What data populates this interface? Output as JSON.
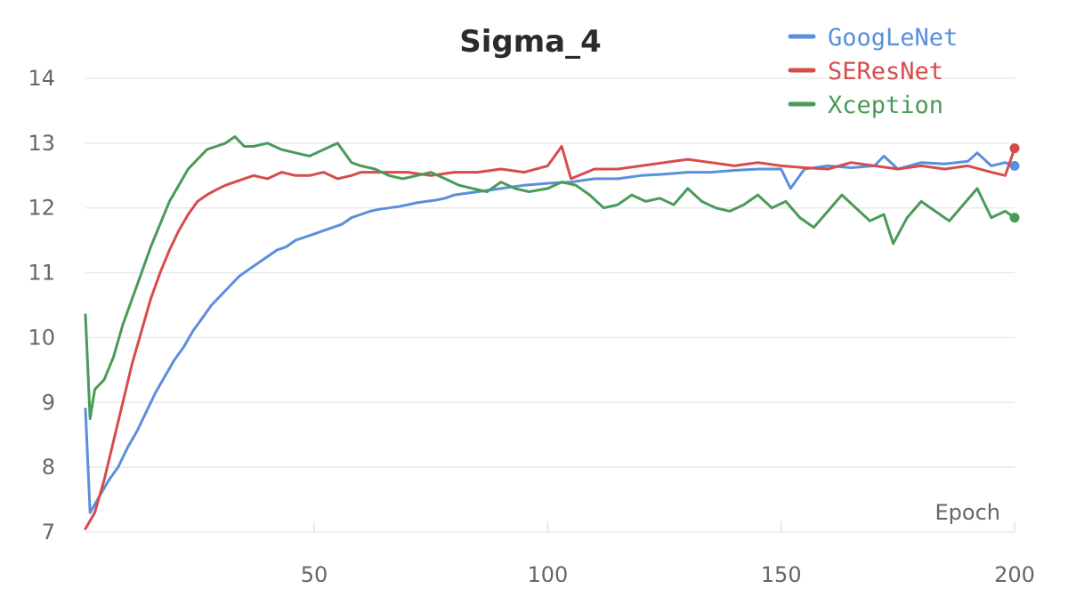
{
  "chart_data": {
    "type": "line",
    "title": "Sigma_4",
    "xlabel": "Epoch",
    "ylabel": "",
    "xlim": [
      1,
      200
    ],
    "ylim": [
      7,
      14
    ],
    "xticks": [
      50,
      100,
      150,
      200
    ],
    "yticks": [
      7,
      8,
      9,
      10,
      11,
      12,
      13,
      14
    ],
    "grid": true,
    "legend_position": "top-right",
    "series": [
      {
        "name": "GoogLeNet",
        "color": "#5a8fdc",
        "points": [
          [
            1,
            8.9
          ],
          [
            2,
            7.3
          ],
          [
            4,
            7.55
          ],
          [
            6,
            7.8
          ],
          [
            8,
            8.0
          ],
          [
            10,
            8.3
          ],
          [
            12,
            8.55
          ],
          [
            14,
            8.85
          ],
          [
            16,
            9.15
          ],
          [
            18,
            9.4
          ],
          [
            20,
            9.65
          ],
          [
            22,
            9.85
          ],
          [
            24,
            10.1
          ],
          [
            26,
            10.3
          ],
          [
            28,
            10.5
          ],
          [
            30,
            10.65
          ],
          [
            32,
            10.8
          ],
          [
            34,
            10.95
          ],
          [
            36,
            11.05
          ],
          [
            38,
            11.15
          ],
          [
            40,
            11.25
          ],
          [
            42,
            11.35
          ],
          [
            44,
            11.4
          ],
          [
            46,
            11.5
          ],
          [
            48,
            11.55
          ],
          [
            50,
            11.6
          ],
          [
            52,
            11.65
          ],
          [
            54,
            11.7
          ],
          [
            56,
            11.75
          ],
          [
            58,
            11.85
          ],
          [
            60,
            11.9
          ],
          [
            62,
            11.95
          ],
          [
            64,
            11.98
          ],
          [
            66,
            12.0
          ],
          [
            68,
            12.02
          ],
          [
            70,
            12.05
          ],
          [
            72,
            12.08
          ],
          [
            74,
            12.1
          ],
          [
            76,
            12.12
          ],
          [
            78,
            12.15
          ],
          [
            80,
            12.2
          ],
          [
            85,
            12.25
          ],
          [
            90,
            12.3
          ],
          [
            95,
            12.35
          ],
          [
            100,
            12.38
          ],
          [
            105,
            12.4
          ],
          [
            110,
            12.45
          ],
          [
            115,
            12.45
          ],
          [
            120,
            12.5
          ],
          [
            125,
            12.52
          ],
          [
            130,
            12.55
          ],
          [
            135,
            12.55
          ],
          [
            140,
            12.58
          ],
          [
            145,
            12.6
          ],
          [
            150,
            12.6
          ],
          [
            152,
            12.3
          ],
          [
            155,
            12.6
          ],
          [
            160,
            12.65
          ],
          [
            165,
            12.62
          ],
          [
            170,
            12.65
          ],
          [
            172,
            12.8
          ],
          [
            175,
            12.6
          ],
          [
            180,
            12.7
          ],
          [
            185,
            12.68
          ],
          [
            190,
            12.72
          ],
          [
            192,
            12.85
          ],
          [
            195,
            12.65
          ],
          [
            198,
            12.7
          ],
          [
            200,
            12.65
          ]
        ]
      },
      {
        "name": "SEResNet",
        "color": "#d64c4c",
        "points": [
          [
            1,
            7.05
          ],
          [
            3,
            7.3
          ],
          [
            5,
            7.8
          ],
          [
            7,
            8.4
          ],
          [
            9,
            9.0
          ],
          [
            11,
            9.6
          ],
          [
            13,
            10.1
          ],
          [
            15,
            10.6
          ],
          [
            17,
            11.0
          ],
          [
            19,
            11.35
          ],
          [
            21,
            11.65
          ],
          [
            23,
            11.9
          ],
          [
            25,
            12.1
          ],
          [
            27,
            12.2
          ],
          [
            29,
            12.28
          ],
          [
            31,
            12.35
          ],
          [
            33,
            12.4
          ],
          [
            35,
            12.45
          ],
          [
            37,
            12.5
          ],
          [
            40,
            12.45
          ],
          [
            43,
            12.55
          ],
          [
            46,
            12.5
          ],
          [
            49,
            12.5
          ],
          [
            52,
            12.55
          ],
          [
            55,
            12.45
          ],
          [
            58,
            12.5
          ],
          [
            60,
            12.55
          ],
          [
            65,
            12.55
          ],
          [
            70,
            12.55
          ],
          [
            75,
            12.5
          ],
          [
            80,
            12.55
          ],
          [
            85,
            12.55
          ],
          [
            90,
            12.6
          ],
          [
            95,
            12.55
          ],
          [
            100,
            12.65
          ],
          [
            103,
            12.95
          ],
          [
            105,
            12.45
          ],
          [
            110,
            12.6
          ],
          [
            115,
            12.6
          ],
          [
            120,
            12.65
          ],
          [
            125,
            12.7
          ],
          [
            130,
            12.75
          ],
          [
            135,
            12.7
          ],
          [
            140,
            12.65
          ],
          [
            145,
            12.7
          ],
          [
            150,
            12.65
          ],
          [
            155,
            12.62
          ],
          [
            160,
            12.6
          ],
          [
            165,
            12.7
          ],
          [
            170,
            12.65
          ],
          [
            175,
            12.6
          ],
          [
            180,
            12.65
          ],
          [
            185,
            12.6
          ],
          [
            190,
            12.65
          ],
          [
            195,
            12.55
          ],
          [
            198,
            12.5
          ],
          [
            200,
            12.92
          ]
        ]
      },
      {
        "name": "Xception",
        "color": "#4a9a58",
        "points": [
          [
            1,
            10.35
          ],
          [
            2,
            8.75
          ],
          [
            3,
            9.2
          ],
          [
            5,
            9.35
          ],
          [
            7,
            9.7
          ],
          [
            9,
            10.2
          ],
          [
            11,
            10.6
          ],
          [
            13,
            11.0
          ],
          [
            15,
            11.4
          ],
          [
            17,
            11.75
          ],
          [
            19,
            12.1
          ],
          [
            21,
            12.35
          ],
          [
            23,
            12.6
          ],
          [
            25,
            12.75
          ],
          [
            27,
            12.9
          ],
          [
            29,
            12.95
          ],
          [
            31,
            13.0
          ],
          [
            33,
            13.1
          ],
          [
            35,
            12.95
          ],
          [
            37,
            12.95
          ],
          [
            40,
            13.0
          ],
          [
            43,
            12.9
          ],
          [
            46,
            12.85
          ],
          [
            49,
            12.8
          ],
          [
            52,
            12.9
          ],
          [
            55,
            13.0
          ],
          [
            58,
            12.7
          ],
          [
            60,
            12.65
          ],
          [
            63,
            12.6
          ],
          [
            66,
            12.5
          ],
          [
            69,
            12.45
          ],
          [
            72,
            12.5
          ],
          [
            75,
            12.55
          ],
          [
            78,
            12.45
          ],
          [
            81,
            12.35
          ],
          [
            84,
            12.3
          ],
          [
            87,
            12.25
          ],
          [
            90,
            12.4
          ],
          [
            93,
            12.3
          ],
          [
            96,
            12.25
          ],
          [
            100,
            12.3
          ],
          [
            103,
            12.4
          ],
          [
            106,
            12.35
          ],
          [
            109,
            12.2
          ],
          [
            112,
            12.0
          ],
          [
            115,
            12.05
          ],
          [
            118,
            12.2
          ],
          [
            121,
            12.1
          ],
          [
            124,
            12.15
          ],
          [
            127,
            12.05
          ],
          [
            130,
            12.3
          ],
          [
            133,
            12.1
          ],
          [
            136,
            12.0
          ],
          [
            139,
            11.95
          ],
          [
            142,
            12.05
          ],
          [
            145,
            12.2
          ],
          [
            148,
            12.0
          ],
          [
            151,
            12.1
          ],
          [
            154,
            11.85
          ],
          [
            157,
            11.7
          ],
          [
            160,
            11.95
          ],
          [
            163,
            12.2
          ],
          [
            166,
            12.0
          ],
          [
            169,
            11.8
          ],
          [
            172,
            11.9
          ],
          [
            174,
            11.45
          ],
          [
            177,
            11.85
          ],
          [
            180,
            12.1
          ],
          [
            183,
            11.95
          ],
          [
            186,
            11.8
          ],
          [
            189,
            12.05
          ],
          [
            192,
            12.3
          ],
          [
            195,
            11.85
          ],
          [
            198,
            11.95
          ],
          [
            200,
            11.85
          ]
        ]
      }
    ]
  }
}
